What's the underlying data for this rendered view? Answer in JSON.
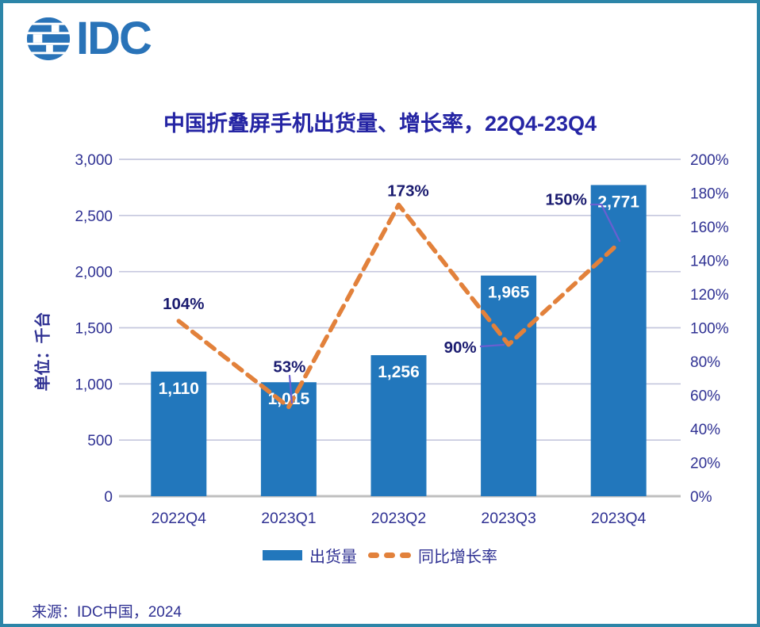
{
  "logo": {
    "brand": "IDC"
  },
  "header": {
    "title": "中国折叠屏手机出货量、增长率，22Q4-23Q4"
  },
  "legend": {
    "bar": "出货量",
    "line": "同比增长率"
  },
  "footer": {
    "source": "来源：IDC中国，2024"
  },
  "colors": {
    "bar_blue": "#2277BC",
    "line_orange": "#E2813B",
    "navy_text": "#2F3193",
    "label_navy": "#1B1C70",
    "gridline": "#C5C7DE",
    "axis_line": "#BFBFBF",
    "border_teal": "#2C85A8",
    "leader_purple": "#6A5FD0",
    "title_navy": "#2525A4",
    "logo_blue": "#2973B8",
    "bar_label_white": "#FFFFFF"
  },
  "chart_data": {
    "type": "bar",
    "subtype": "combo-bar-line-dual-axis",
    "title": "中国折叠屏手机出货量、增长率，22Q4-23Q4",
    "categories": [
      "2022Q4",
      "2023Q1",
      "2023Q2",
      "2023Q3",
      "2023Q4"
    ],
    "series": [
      {
        "name": "出货量",
        "type": "bar",
        "axis": "left",
        "values": [
          1110,
          1015,
          1256,
          1965,
          2771
        ],
        "labels": [
          "1,110",
          "1,015",
          "1,256",
          "1,965",
          "2,771"
        ]
      },
      {
        "name": "同比增长率",
        "type": "line",
        "style": "dashed",
        "axis": "right",
        "values": [
          104,
          53,
          173,
          90,
          150
        ],
        "labels": [
          "104%",
          "53%",
          "173%",
          "90%",
          "150%"
        ]
      }
    ],
    "left_axis": {
      "title": "单位：千台",
      "min": 0,
      "max": 3000,
      "step": 500,
      "tick_labels": [
        "0",
        "500",
        "1,000",
        "1,500",
        "2,000",
        "2,500",
        "3,000"
      ]
    },
    "right_axis": {
      "min": 0,
      "max": 200,
      "step": 20,
      "tick_labels": [
        "0%",
        "20%",
        "40%",
        "60%",
        "80%",
        "100%",
        "120%",
        "140%",
        "160%",
        "180%",
        "200%"
      ]
    },
    "grid": "horizontal gridlines at left-axis ticks",
    "legend_position": "bottom center"
  }
}
